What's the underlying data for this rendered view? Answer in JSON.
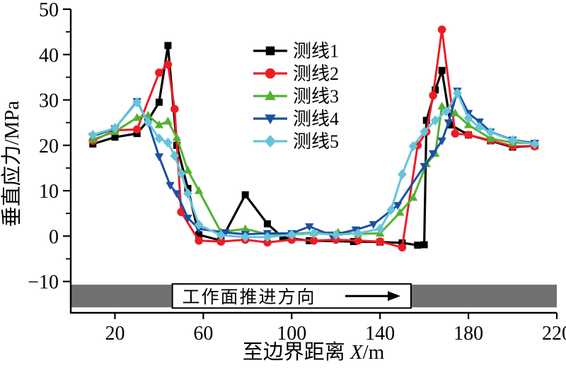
{
  "chart_data": {
    "type": "line",
    "title": "",
    "xlabel": "至边界距离 X/m",
    "xlabel_parts": {
      "prefix": "至边界距离",
      "variable": "X",
      "unit": "/m"
    },
    "ylabel": "垂直应力/MPa",
    "xlim": [
      0,
      220
    ],
    "ylim": [
      -16.9,
      50
    ],
    "x_ticks": [
      20,
      60,
      100,
      140,
      180,
      220
    ],
    "y_ticks": [
      -10,
      0,
      10,
      20,
      30,
      40,
      50
    ],
    "y_minor_ticks": [
      -5,
      5,
      15,
      25,
      35,
      45
    ],
    "grid": false,
    "legend_position": "upper-center",
    "series": [
      {
        "name": "测线1",
        "color": "#000000",
        "marker": "square",
        "x": [
          10,
          20,
          30,
          35,
          40,
          44,
          48,
          53,
          58,
          68,
          79,
          89,
          96,
          108,
          128,
          140,
          150,
          157,
          160,
          161,
          165,
          168,
          172,
          180,
          190,
          200,
          210
        ],
        "y": [
          20.3,
          21.8,
          22.6,
          25.5,
          29.5,
          42.0,
          20.0,
          10.5,
          0.3,
          -1.0,
          9.1,
          2.7,
          -0.3,
          -1.0,
          -1.2,
          -1.3,
          -1.5,
          -2.0,
          -1.9,
          25.5,
          32.2,
          36.5,
          24.5,
          22.3,
          21.0,
          19.6,
          19.9
        ]
      },
      {
        "name": "测线2",
        "color": "#ed1c24",
        "marker": "circle",
        "x": [
          10,
          20,
          30,
          40,
          44,
          47,
          50,
          58,
          68,
          79,
          89,
          100,
          110,
          120,
          130,
          140,
          150,
          157,
          161,
          164,
          168,
          174,
          180,
          190,
          200,
          210
        ],
        "y": [
          21.0,
          23.3,
          23.5,
          36.0,
          37.8,
          28.0,
          5.3,
          -1.0,
          -1.2,
          -0.8,
          -1.4,
          -0.8,
          -1.0,
          -0.8,
          -1.0,
          -1.2,
          -2.5,
          20.0,
          23.0,
          31.0,
          45.5,
          22.6,
          22.3,
          21.1,
          19.8,
          19.8
        ]
      },
      {
        "name": "测线3",
        "color": "#53b231",
        "marker": "triangle-up",
        "x": [
          10,
          20,
          30,
          35,
          40,
          44,
          48,
          53,
          58,
          68,
          79,
          89,
          100,
          110,
          121,
          130,
          140,
          149,
          155,
          161,
          165,
          168,
          174,
          180,
          190,
          200,
          210
        ],
        "y": [
          21.3,
          23.0,
          26.1,
          26.6,
          24.5,
          25.3,
          21.7,
          14.5,
          10.0,
          0.9,
          1.6,
          0.4,
          0.5,
          0.8,
          0.8,
          0.5,
          0.6,
          5.2,
          8.5,
          15.9,
          18.2,
          28.6,
          27.1,
          24.5,
          21.5,
          20.6,
          20.5
        ]
      },
      {
        "name": "测线4",
        "color": "#1d4fa1",
        "marker": "triangle-down",
        "x": [
          10,
          20,
          30,
          35,
          40,
          45,
          48,
          53,
          58,
          70,
          79,
          89,
          100,
          108,
          118,
          129,
          137,
          148,
          160,
          164,
          168,
          171,
          175,
          180,
          185,
          190,
          200,
          210
        ],
        "y": [
          22.0,
          23.7,
          29.7,
          25.0,
          17.5,
          11.2,
          9.4,
          4.0,
          1.6,
          0.8,
          0.4,
          0.6,
          0.6,
          2.1,
          0.2,
          1.4,
          2.6,
          6.8,
          15.4,
          18.2,
          21.0,
          25.0,
          32.0,
          27.1,
          25.2,
          23.0,
          21.2,
          20.5
        ]
      },
      {
        "name": "测线5",
        "color": "#67c3d9",
        "marker": "diamond",
        "x": [
          10,
          20,
          30,
          35,
          40,
          44,
          47,
          50,
          53,
          58,
          68,
          79,
          89,
          100,
          110,
          120,
          130,
          140,
          145,
          150,
          155,
          160,
          165,
          170,
          175,
          180,
          185,
          190,
          200,
          210
        ],
        "y": [
          22.3,
          23.8,
          29.5,
          25.1,
          21.5,
          20.6,
          17.7,
          13.8,
          9.4,
          2.5,
          0.2,
          -0.2,
          -0.2,
          0.3,
          0.6,
          0.3,
          0.6,
          1.6,
          5.8,
          13.6,
          19.8,
          23.0,
          25.5,
          27.5,
          31.5,
          26.0,
          24.0,
          22.9,
          21.1,
          20.3
        ]
      }
    ],
    "annotation_bar": {
      "label": "工作面推进方向",
      "arrow_icon": "right-arrow",
      "bar_color": "#707070",
      "bar_y_range_mpa": [
        -15.7,
        -10.7
      ],
      "window_x_range_m": [
        46,
        154
      ]
    }
  }
}
